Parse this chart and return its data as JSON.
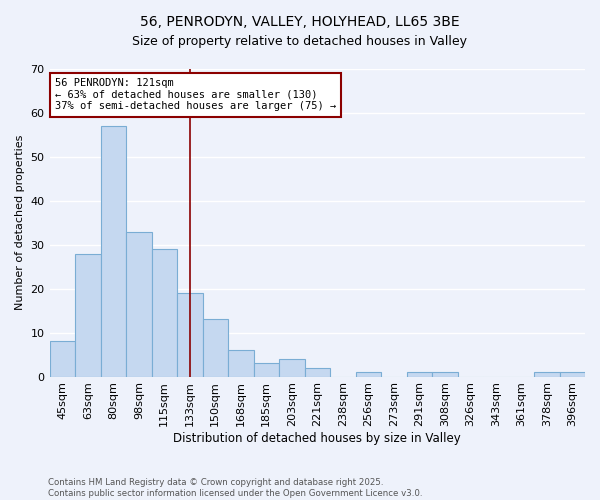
{
  "title1": "56, PENRODYN, VALLEY, HOLYHEAD, LL65 3BE",
  "title2": "Size of property relative to detached houses in Valley",
  "xlabel": "Distribution of detached houses by size in Valley",
  "ylabel": "Number of detached properties",
  "categories": [
    "45sqm",
    "63sqm",
    "80sqm",
    "98sqm",
    "115sqm",
    "133sqm",
    "150sqm",
    "168sqm",
    "185sqm",
    "203sqm",
    "221sqm",
    "238sqm",
    "256sqm",
    "273sqm",
    "291sqm",
    "308sqm",
    "326sqm",
    "343sqm",
    "361sqm",
    "378sqm",
    "396sqm"
  ],
  "values": [
    8,
    28,
    57,
    33,
    29,
    19,
    13,
    6,
    3,
    4,
    2,
    0,
    1,
    0,
    1,
    1,
    0,
    0,
    0,
    1,
    1
  ],
  "bar_color": "#c5d8f0",
  "bar_edge_color": "#7aadd4",
  "vline_x": 5.0,
  "vline_color": "#8b0000",
  "annotation_text": "56 PENRODYN: 121sqm\n← 63% of detached houses are smaller (130)\n37% of semi-detached houses are larger (75) →",
  "annotation_box_color": "white",
  "annotation_box_edge_color": "#8b0000",
  "ylim": [
    0,
    70
  ],
  "yticks": [
    0,
    10,
    20,
    30,
    40,
    50,
    60,
    70
  ],
  "footer": "Contains HM Land Registry data © Crown copyright and database right 2025.\nContains public sector information licensed under the Open Government Licence v3.0.",
  "bg_color": "#eef2fb",
  "grid_color": "white"
}
